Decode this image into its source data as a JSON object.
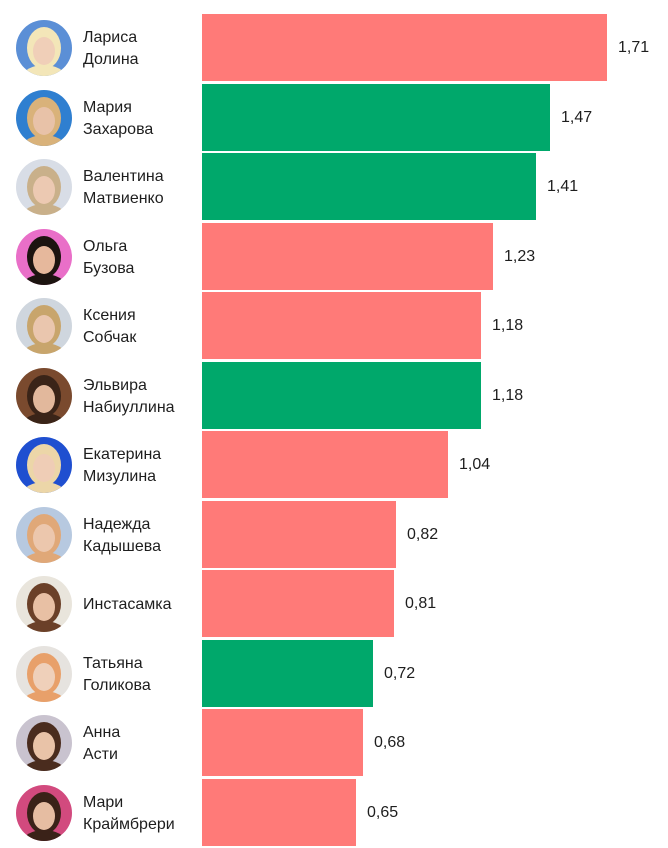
{
  "colors": {
    "positive": "#00a86b",
    "negative": "#ff7a78"
  },
  "chart_data": {
    "type": "bar",
    "orientation": "horizontal",
    "categories": [
      "Лариса Долина",
      "Мария Захарова",
      "Валентина Матвиенко",
      "Ольга Бузова",
      "Ксения Собчак",
      "Эльвира Набиуллина",
      "Екатерина Мизулина",
      "Надежда Кадышева",
      "Инстасамка",
      "Татьяна Голикова",
      "Анна Асти",
      "Мари Краймбрери"
    ],
    "rows": [
      {
        "name_lines": [
          "Лариса",
          "Долина"
        ],
        "value": 1.71,
        "value_label": "1,71",
        "color": "negative",
        "avatar": {
          "bg": "#5b8fd6",
          "skin": "#f0cfb8",
          "hair": "#f3e6b8"
        }
      },
      {
        "name_lines": [
          "Мария",
          "Захарова"
        ],
        "value": 1.47,
        "value_label": "1,47",
        "color": "positive",
        "avatar": {
          "bg": "#2f7fd0",
          "skin": "#e8c2a8",
          "hair": "#d9b27a"
        }
      },
      {
        "name_lines": [
          "Валентина",
          "Матвиенко"
        ],
        "value": 1.41,
        "value_label": "1,41",
        "color": "positive",
        "avatar": {
          "bg": "#d8dde6",
          "skin": "#ecc9b2",
          "hair": "#c9b08a"
        }
      },
      {
        "name_lines": [
          "Ольга",
          "Бузова"
        ],
        "value": 1.23,
        "value_label": "1,23",
        "color": "negative",
        "avatar": {
          "bg": "#e96fc8",
          "skin": "#e6b89c",
          "hair": "#1c1410"
        }
      },
      {
        "name_lines": [
          "Ксения",
          "Собчак"
        ],
        "value": 1.18,
        "value_label": "1,18",
        "color": "negative",
        "avatar": {
          "bg": "#cfd6de",
          "skin": "#eac6ae",
          "hair": "#c8a56c"
        }
      },
      {
        "name_lines": [
          "Эльвира",
          "Набиуллина"
        ],
        "value": 1.18,
        "value_label": "1,18",
        "color": "positive",
        "avatar": {
          "bg": "#7a4a2e",
          "skin": "#e2b89c",
          "hair": "#3a2418"
        }
      },
      {
        "name_lines": [
          "Екатерина",
          "Мизулина"
        ],
        "value": 1.04,
        "value_label": "1,04",
        "color": "negative",
        "avatar": {
          "bg": "#1f4fd0",
          "skin": "#efcdb6",
          "hair": "#ecd6a8"
        }
      },
      {
        "name_lines": [
          "Надежда",
          "Кадышева"
        ],
        "value": 0.82,
        "value_label": "0,82",
        "color": "negative",
        "avatar": {
          "bg": "#b7c9e0",
          "skin": "#ecc7ad",
          "hair": "#e0a878"
        }
      },
      {
        "name_lines": [
          "Инстасамка"
        ],
        "value": 0.81,
        "value_label": "0,81",
        "color": "negative",
        "avatar": {
          "bg": "#e9e5dc",
          "skin": "#e8c0a4",
          "hair": "#6b4028"
        }
      },
      {
        "name_lines": [
          "Татьяна",
          "Голикова"
        ],
        "value": 0.72,
        "value_label": "0,72",
        "color": "positive",
        "avatar": {
          "bg": "#e6e3df",
          "skin": "#efd0ba",
          "hair": "#e8a06a"
        }
      },
      {
        "name_lines": [
          "Анна",
          "Асти"
        ],
        "value": 0.68,
        "value_label": "0,68",
        "color": "negative",
        "avatar": {
          "bg": "#c9c3cf",
          "skin": "#e9c3a8",
          "hair": "#4a2c1e"
        }
      },
      {
        "name_lines": [
          "Мари",
          "Краймбрери"
        ],
        "value": 0.65,
        "value_label": "0,65",
        "color": "negative",
        "avatar": {
          "bg": "#d24a7e",
          "skin": "#e6bda2",
          "hair": "#3a2218"
        }
      }
    ],
    "xlim": [
      0,
      1.71
    ]
  }
}
